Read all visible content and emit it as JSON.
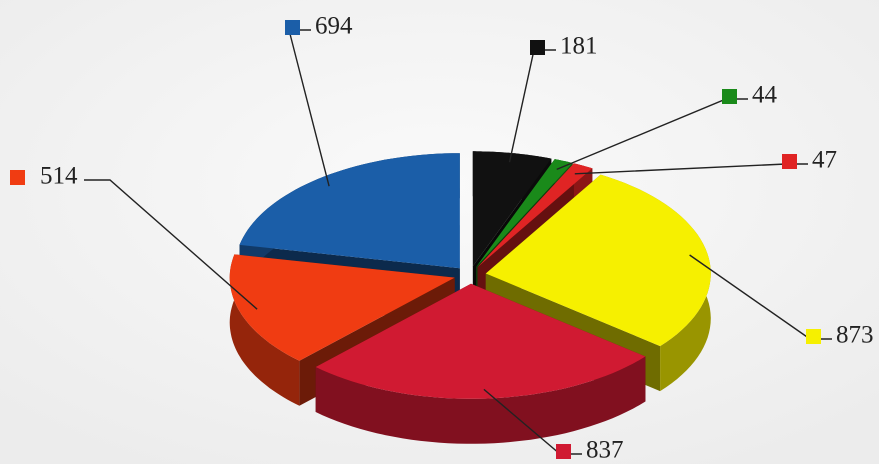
{
  "chart_data": {
    "type": "pie",
    "values": [
      694,
      181,
      44,
      47,
      873,
      837,
      514
    ],
    "colors": [
      "#1b5ea8",
      "#111111",
      "#1a8a1a",
      "#e02424",
      "#f6f000",
      "#d01a32",
      "#f03c12"
    ]
  }
}
